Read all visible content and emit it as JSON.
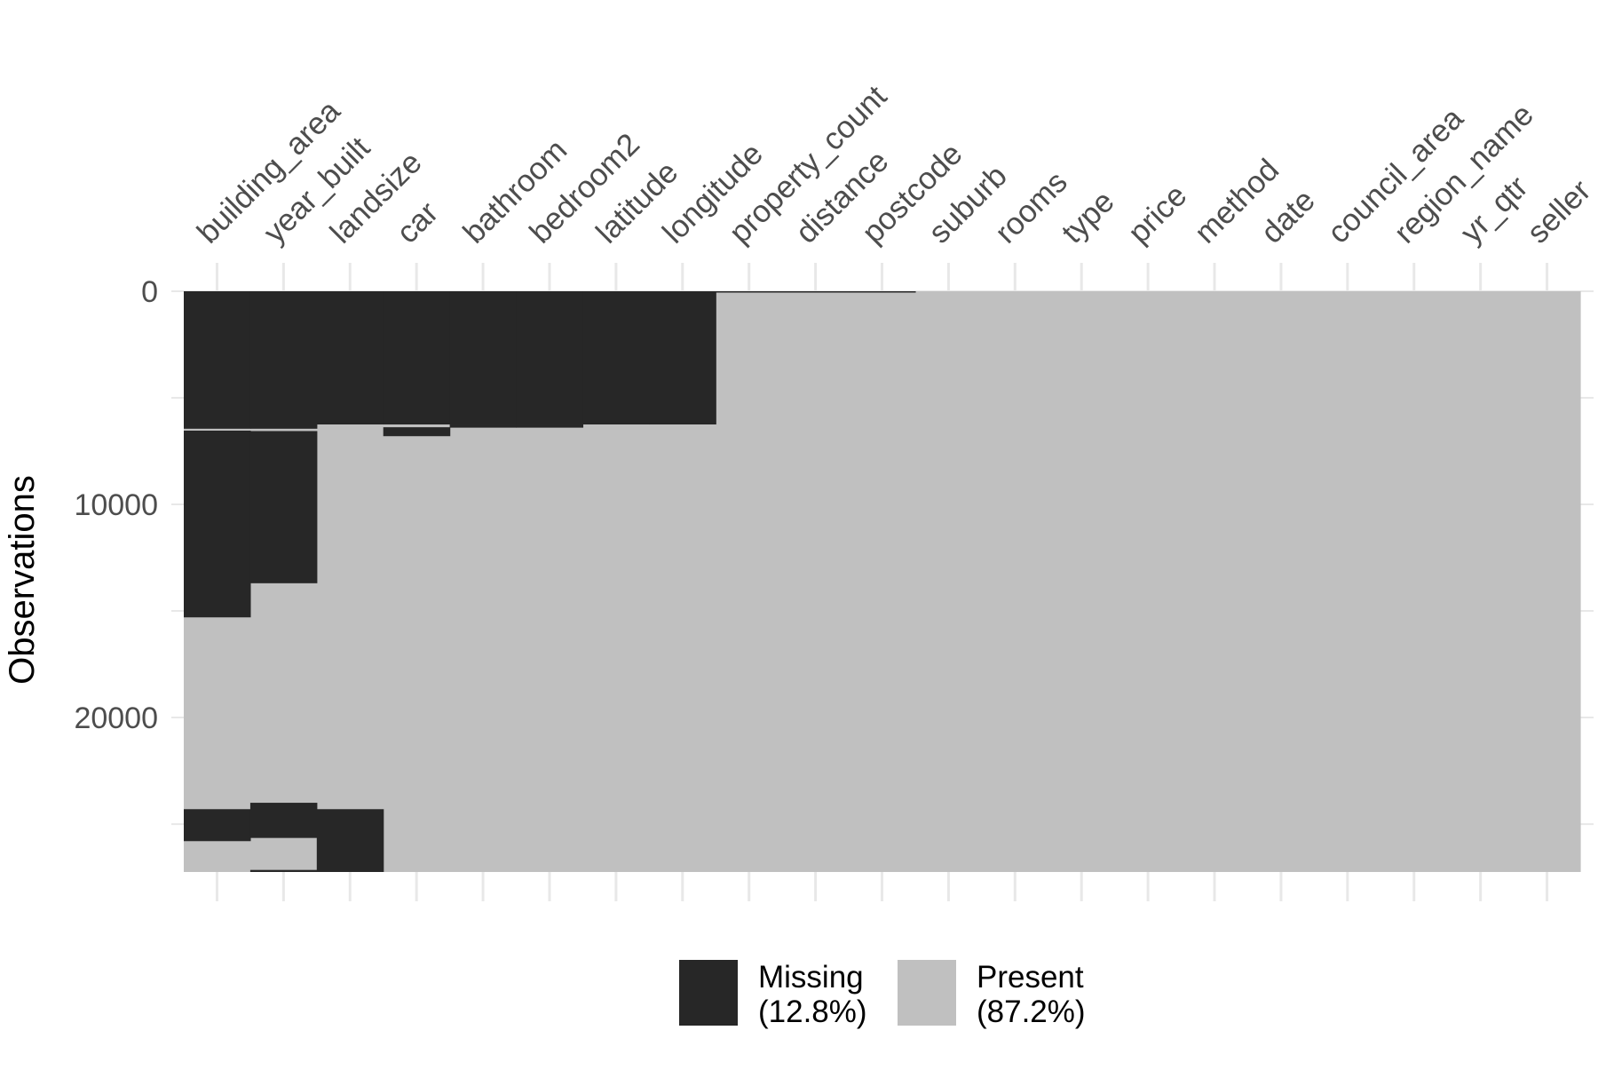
{
  "chart_data": {
    "type": "heatmap",
    "title": "",
    "xlabel": "",
    "ylabel": "Observations",
    "ylim": [
      0,
      27247
    ],
    "y_ticks": [
      0,
      10000,
      20000
    ],
    "y_tick_labels": [
      "0",
      "10000",
      "20000"
    ],
    "y_reversed": true,
    "grid": true,
    "legend_position": "bottom",
    "colors": {
      "missing": "#272727",
      "present": "#C0C0C0",
      "grid": "#E8E8E8",
      "background": "#FFFFFF",
      "tick_text": "#4D4D4D",
      "axis_title": "#000000"
    },
    "legend": [
      {
        "key": "missing",
        "label": "Missing",
        "pct": "(12.8%)"
      },
      {
        "key": "present",
        "label": "Present",
        "pct": "(87.2%)"
      }
    ],
    "variables": [
      {
        "name": "building_area",
        "missing_ranges": [
          [
            0,
            6450
          ],
          [
            6540,
            15300
          ],
          [
            24300,
            25800
          ]
        ]
      },
      {
        "name": "year_built",
        "missing_ranges": [
          [
            0,
            6450
          ],
          [
            6560,
            13700
          ],
          [
            24000,
            25650
          ],
          [
            27150,
            27247
          ]
        ]
      },
      {
        "name": "landsize",
        "missing_ranges": [
          [
            0,
            6250
          ],
          [
            24300,
            27247
          ]
        ]
      },
      {
        "name": "car",
        "missing_ranges": [
          [
            0,
            6250
          ],
          [
            6380,
            6800
          ]
        ]
      },
      {
        "name": "bathroom",
        "missing_ranges": [
          [
            0,
            6250
          ],
          [
            6250,
            6400
          ]
        ]
      },
      {
        "name": "bedroom2",
        "missing_ranges": [
          [
            0,
            6250
          ],
          [
            6250,
            6400
          ]
        ]
      },
      {
        "name": "latitude",
        "missing_ranges": [
          [
            0,
            6250
          ]
        ]
      },
      {
        "name": "longitude",
        "missing_ranges": [
          [
            0,
            6250
          ]
        ]
      },
      {
        "name": "property_count",
        "missing_ranges": [
          [
            0,
            3
          ]
        ]
      },
      {
        "name": "distance",
        "missing_ranges": [
          [
            0,
            1
          ]
        ]
      },
      {
        "name": "postcode",
        "missing_ranges": [
          [
            0,
            1
          ]
        ]
      },
      {
        "name": "suburb",
        "missing_ranges": []
      },
      {
        "name": "rooms",
        "missing_ranges": []
      },
      {
        "name": "type",
        "missing_ranges": []
      },
      {
        "name": "price",
        "missing_ranges": []
      },
      {
        "name": "method",
        "missing_ranges": []
      },
      {
        "name": "date",
        "missing_ranges": []
      },
      {
        "name": "council_area",
        "missing_ranges": []
      },
      {
        "name": "region_name",
        "missing_ranges": []
      },
      {
        "name": "yr_qtr",
        "missing_ranges": []
      },
      {
        "name": "seller",
        "missing_ranges": []
      }
    ]
  }
}
